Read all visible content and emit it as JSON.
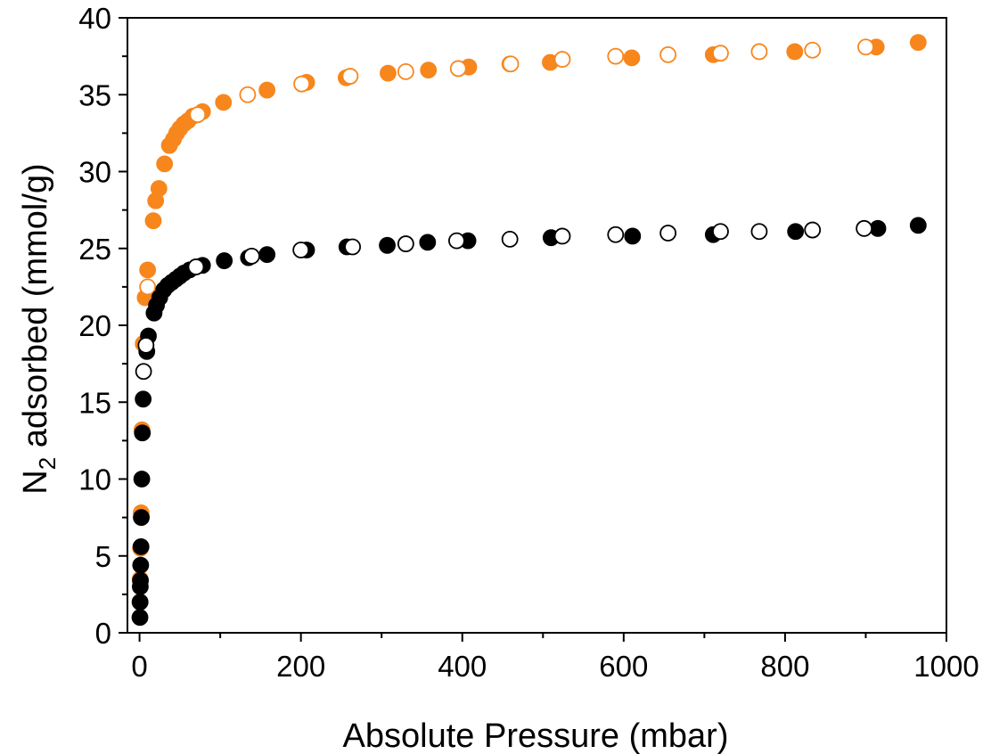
{
  "chart_data": {
    "type": "scatter",
    "xlabel": "Absolute Pressure (mbar)",
    "ylabel": {
      "prefix": "N",
      "subscript": "2",
      "suffix": " adsorbed (mmol/g)"
    },
    "xlim": [
      -15,
      1000
    ],
    "ylim": [
      0,
      40
    ],
    "x_ticks": [
      0,
      200,
      400,
      600,
      800,
      1000
    ],
    "y_ticks": [
      0,
      5,
      10,
      15,
      20,
      25,
      30,
      35,
      40
    ],
    "grid": false,
    "legend": "none",
    "series": [
      {
        "color": "#f7861d",
        "marker": "filled-circle",
        "points": [
          [
            0.5,
            2.0
          ],
          [
            0.8,
            3.5
          ],
          [
            1.2,
            5.5
          ],
          [
            2,
            7.8
          ],
          [
            3,
            13.2
          ],
          [
            4.5,
            18.8
          ],
          [
            7,
            21.8
          ],
          [
            10,
            23.6
          ],
          [
            17,
            26.8
          ],
          [
            20,
            28.1
          ],
          [
            24,
            28.9
          ],
          [
            31,
            30.5
          ],
          [
            37,
            31.7
          ],
          [
            42,
            32.1
          ],
          [
            46,
            32.5
          ],
          [
            50,
            32.8
          ],
          [
            55,
            33.1
          ],
          [
            60,
            33.3
          ],
          [
            66,
            33.6
          ],
          [
            78,
            33.9
          ],
          [
            104,
            34.5
          ],
          [
            158,
            35.3
          ],
          [
            207,
            35.8
          ],
          [
            256,
            36.1
          ],
          [
            308,
            36.4
          ],
          [
            358,
            36.6
          ],
          [
            408,
            36.8
          ],
          [
            459,
            37.0
          ],
          [
            509,
            37.1
          ],
          [
            610,
            37.4
          ],
          [
            711,
            37.6
          ],
          [
            812,
            37.8
          ],
          [
            913,
            38.1
          ],
          [
            965,
            38.4
          ]
        ]
      },
      {
        "color": "#f7861d",
        "marker": "open-circle",
        "points": [
          [
            10,
            22.5
          ],
          [
            72,
            33.7
          ],
          [
            134,
            35.0
          ],
          [
            201,
            35.7
          ],
          [
            261,
            36.2
          ],
          [
            330,
            36.5
          ],
          [
            395,
            36.7
          ],
          [
            460,
            37.0
          ],
          [
            524,
            37.3
          ],
          [
            590,
            37.5
          ],
          [
            655,
            37.6
          ],
          [
            720,
            37.7
          ],
          [
            768,
            37.8
          ],
          [
            834,
            37.9
          ],
          [
            900,
            38.1
          ]
        ]
      },
      {
        "color": "#000000",
        "marker": "filled-circle",
        "points": [
          [
            0.5,
            1.0
          ],
          [
            0.7,
            2.0
          ],
          [
            0.9,
            3.0
          ],
          [
            1.1,
            3.4
          ],
          [
            1.4,
            4.4
          ],
          [
            1.8,
            5.6
          ],
          [
            2.2,
            7.5
          ],
          [
            2.8,
            10.0
          ],
          [
            3.5,
            13.0
          ],
          [
            4.5,
            15.2
          ],
          [
            9,
            18.3
          ],
          [
            11,
            19.3
          ],
          [
            18,
            20.8
          ],
          [
            21,
            21.3
          ],
          [
            25,
            21.8
          ],
          [
            30,
            22.3
          ],
          [
            35,
            22.6
          ],
          [
            40,
            22.8
          ],
          [
            45,
            23.0
          ],
          [
            50,
            23.2
          ],
          [
            55,
            23.4
          ],
          [
            62,
            23.6
          ],
          [
            78,
            23.9
          ],
          [
            105,
            24.2
          ],
          [
            135,
            24.4
          ],
          [
            158,
            24.6
          ],
          [
            207,
            24.9
          ],
          [
            257,
            25.1
          ],
          [
            307,
            25.2
          ],
          [
            357,
            25.4
          ],
          [
            407,
            25.5
          ],
          [
            510,
            25.7
          ],
          [
            611,
            25.8
          ],
          [
            711,
            25.9
          ],
          [
            813,
            26.1
          ],
          [
            915,
            26.3
          ],
          [
            965,
            26.5
          ]
        ]
      },
      {
        "color": "#000000",
        "marker": "open-circle",
        "points": [
          [
            5,
            17.0
          ],
          [
            8,
            18.7
          ],
          [
            70,
            23.8
          ],
          [
            139,
            24.5
          ],
          [
            200,
            24.9
          ],
          [
            264,
            25.1
          ],
          [
            330,
            25.3
          ],
          [
            393,
            25.5
          ],
          [
            459,
            25.6
          ],
          [
            524,
            25.8
          ],
          [
            590,
            25.9
          ],
          [
            655,
            26.0
          ],
          [
            720,
            26.1
          ],
          [
            768,
            26.1
          ],
          [
            834,
            26.2
          ],
          [
            898,
            26.3
          ]
        ]
      }
    ]
  }
}
